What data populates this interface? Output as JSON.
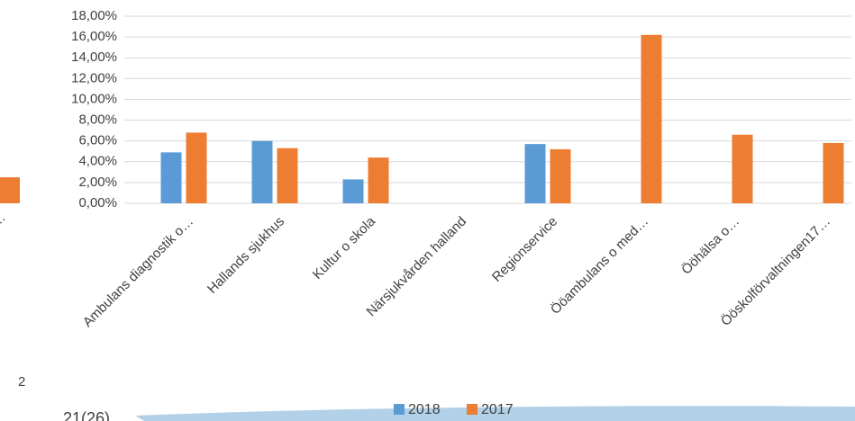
{
  "chart_data": [
    {
      "type": "bar",
      "categories": [
        "Ambulans diagnostik o…",
        "Hallands sjukhus",
        "Kultur o skola",
        "Närsjukvården halland",
        "Regionservice",
        "Ööambulans o med…",
        "Ööhälsa o…",
        "Ööskolförvaltningen17…"
      ],
      "series": [
        {
          "name": "2018",
          "color": "#5b9bd5",
          "values": [
            4.9,
            6.0,
            2.3,
            null,
            5.7,
            null,
            null,
            null
          ]
        },
        {
          "name": "2017",
          "color": "#ed7d31",
          "values": [
            6.8,
            5.3,
            4.4,
            null,
            5.2,
            16.2,
            6.6,
            5.8
          ]
        }
      ],
      "ylim": [
        0,
        18
      ],
      "yticks": [
        {
          "value": 0,
          "label": "0,00%"
        },
        {
          "value": 2,
          "label": "2,00%"
        },
        {
          "value": 4,
          "label": "4,00%"
        },
        {
          "value": 6,
          "label": "6,00%"
        },
        {
          "value": 8,
          "label": "8,00%"
        },
        {
          "value": 10,
          "label": "10,00%"
        },
        {
          "value": 12,
          "label": "12,00%"
        },
        {
          "value": 14,
          "label": "14,00%"
        },
        {
          "value": 16,
          "label": "16,00%"
        },
        {
          "value": 18,
          "label": "18,00%"
        }
      ],
      "grid": true,
      "legend": "bottom"
    },
    {
      "type": "bar",
      "categories": [
        "…"
      ],
      "values": [
        2.5
      ],
      "color": "#ed7d31",
      "ylim": [
        0,
        18
      ]
    }
  ],
  "page": {
    "number": "2",
    "footer": "21(26)"
  }
}
